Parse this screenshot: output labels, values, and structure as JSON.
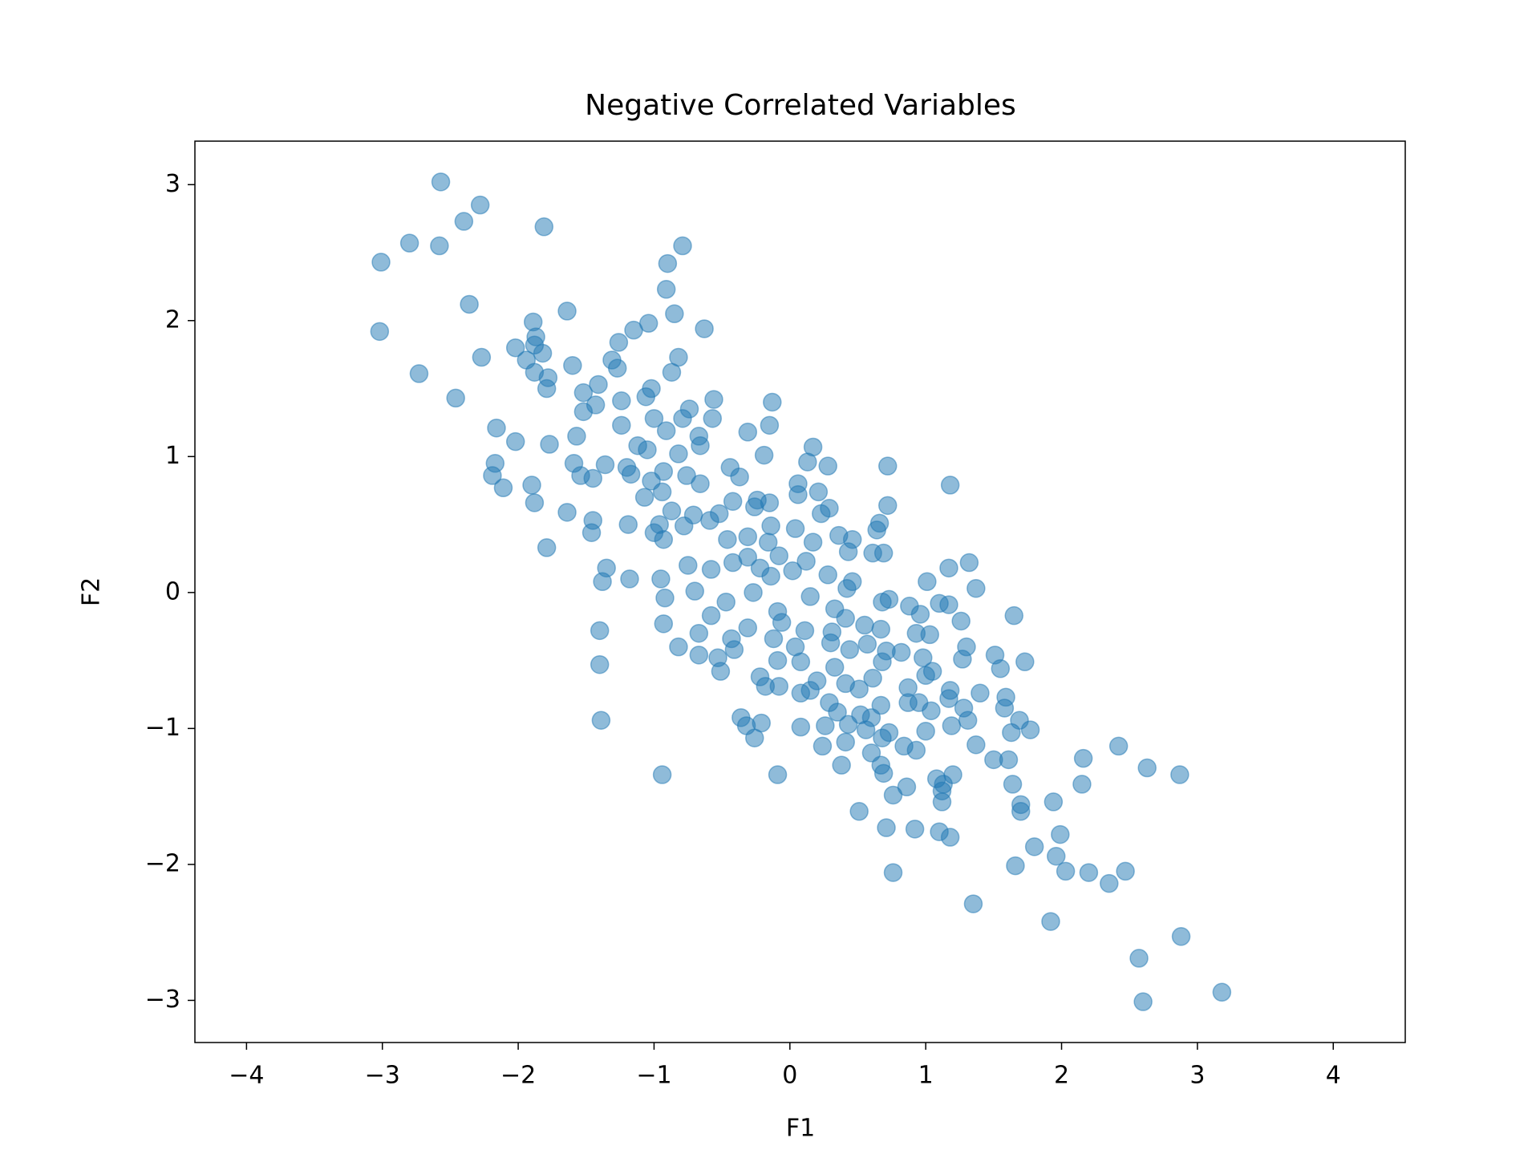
{
  "chart_data": {
    "type": "scatter",
    "title": "Negative Correlated Variables",
    "x_label": "F1",
    "y_label": "F2",
    "color": "#1f77b4",
    "xlim": [
      -4.38,
      4.53
    ],
    "ylim": [
      -3.31,
      3.32
    ],
    "xticks": [
      {
        "value": -4,
        "label": "−4"
      },
      {
        "value": -3,
        "label": "−3"
      },
      {
        "value": -2,
        "label": "−2"
      },
      {
        "value": -1,
        "label": "−1"
      },
      0,
      1,
      2,
      3,
      4
    ],
    "yticks": [
      {
        "value": -3,
        "label": "−3"
      },
      {
        "value": -2,
        "label": "−2"
      },
      {
        "value": -1,
        "label": "−1"
      },
      0,
      1,
      2,
      3
    ],
    "x": [
      -2.57,
      -2.28,
      -2.4,
      -1.81,
      -2.8,
      -2.58,
      -3.01,
      -0.79,
      -0.9,
      -0.91,
      -2.36,
      -1.64,
      -0.85,
      -3.02,
      -1.89,
      -1.04,
      -1.15,
      -0.63,
      -1.87,
      -1.88,
      -1.26,
      -2.02,
      -1.82,
      -2.27,
      -1.94,
      -0.82,
      -1.31,
      -1.6,
      -2.73,
      -1.88,
      -1.27,
      -0.87,
      -1.78,
      -1.79,
      -1.41,
      -1.52,
      -1.02,
      -1.06,
      -2.46,
      -0.56,
      -0.13,
      -1.24,
      -1.43,
      -1.52,
      -0.74,
      -1.0,
      -0.79,
      -0.57,
      -0.91,
      -0.31,
      -2.16,
      -1.24,
      -0.15,
      -0.67,
      -2.02,
      -1.77,
      -1.57,
      0.17,
      -0.66,
      -0.19,
      -1.12,
      -1.05,
      -0.82,
      -2.17,
      0.13,
      -1.59,
      -0.44,
      0.28,
      0.72,
      -1.36,
      -1.2,
      -1.17,
      -0.93,
      -2.19,
      -1.54,
      -1.45,
      -0.37,
      -0.76,
      -1.02,
      -2.11,
      -1.9,
      0.06,
      1.18,
      -0.66,
      -0.94,
      0.06,
      0.21,
      -1.07,
      -0.42,
      -0.24,
      -1.88,
      0.72,
      -0.15,
      -0.26,
      0.29,
      -1.64,
      -0.87,
      0.23,
      -0.52,
      -0.71,
      -1.45,
      -1.19,
      -0.96,
      -0.59,
      -0.78,
      -0.14,
      0.04,
      0.66,
      0.64,
      -1.46,
      -1.0,
      -0.93,
      0.46,
      -0.46,
      -0.31,
      0.36,
      0.17,
      -0.16,
      -1.79,
      0.43,
      0.61,
      0.69,
      -0.31,
      -0.08,
      0.12,
      1.32,
      -0.42,
      -0.22,
      -0.75,
      1.17,
      -1.35,
      -0.58,
      0.02,
      0.28,
      -0.14,
      -1.38,
      -1.18,
      -0.95,
      0.46,
      1.01,
      0.42,
      1.37,
      -0.7,
      -0.27,
      0.15,
      0.73,
      -0.92,
      0.68,
      -0.47,
      0.88,
      1.1,
      0.33,
      -0.09,
      0.96,
      1.17,
      1.65,
      0.41,
      -0.58,
      -0.93,
      1.26,
      -0.06,
      0.55,
      -0.31,
      0.67,
      0.31,
      -1.4,
      0.11,
      -0.67,
      0.93,
      1.03,
      -0.43,
      -0.12,
      0.3,
      0.57,
      -0.82,
      1.3,
      0.04,
      -0.41,
      0.44,
      0.71,
      0.82,
      -0.67,
      -0.53,
      0.98,
      1.27,
      1.73,
      0.68,
      -0.09,
      0.08,
      -1.4,
      0.33,
      1.51,
      1.55,
      -0.51,
      1.05,
      -0.22,
      0.61,
      0.2,
      0.41,
      1.0,
      -0.08,
      -0.18,
      0.87,
      0.15,
      0.51,
      1.18,
      1.4,
      1.59,
      0.08,
      0.95,
      1.17,
      1.28,
      0.29,
      1.58,
      0.67,
      0.87,
      0.35,
      0.52,
      1.04,
      0.6,
      1.69,
      -0.36,
      -0.32,
      -0.21,
      0.26,
      0.08,
      0.43,
      1.19,
      1.31,
      0.56,
      0.73,
      1.0,
      1.63,
      1.77,
      -1.39,
      0.68,
      -0.26,
      0.41,
      0.24,
      1.37,
      0.84,
      0.93,
      0.6,
      2.42,
      1.5,
      1.61,
      2.16,
      0.38,
      0.67,
      2.63,
      -0.09,
      -0.94,
      0.69,
      1.2,
      1.08,
      2.87,
      1.13,
      1.64,
      2.15,
      0.86,
      1.12,
      0.76,
      1.94,
      1.12,
      1.7,
      0.51,
      1.7,
      0.71,
      0.92,
      1.99,
      1.1,
      1.18,
      1.8,
      1.96,
      1.66,
      2.03,
      2.2,
      0.76,
      2.47,
      2.35,
      1.35,
      1.92,
      2.88,
      2.57,
      3.18,
      2.6
    ],
    "y": [
      3.02,
      2.85,
      2.73,
      2.69,
      2.57,
      2.55,
      2.43,
      2.55,
      2.42,
      2.23,
      2.12,
      2.07,
      2.05,
      1.92,
      1.99,
      1.98,
      1.93,
      1.94,
      1.88,
      1.82,
      1.84,
      1.8,
      1.76,
      1.73,
      1.71,
      1.73,
      1.71,
      1.67,
      1.61,
      1.62,
      1.65,
      1.62,
      1.58,
      1.5,
      1.53,
      1.47,
      1.5,
      1.44,
      1.43,
      1.42,
      1.4,
      1.41,
      1.38,
      1.33,
      1.35,
      1.28,
      1.28,
      1.28,
      1.19,
      1.18,
      1.21,
      1.23,
      1.23,
      1.15,
      1.11,
      1.09,
      1.15,
      1.07,
      1.08,
      1.01,
      1.08,
      1.05,
      1.02,
      0.95,
      0.96,
      0.95,
      0.92,
      0.93,
      0.93,
      0.94,
      0.92,
      0.87,
      0.89,
      0.86,
      0.86,
      0.84,
      0.85,
      0.86,
      0.82,
      0.77,
      0.79,
      0.8,
      0.79,
      0.8,
      0.74,
      0.72,
      0.74,
      0.7,
      0.67,
      0.68,
      0.66,
      0.64,
      0.66,
      0.63,
      0.62,
      0.59,
      0.6,
      0.58,
      0.58,
      0.57,
      0.53,
      0.5,
      0.5,
      0.53,
      0.49,
      0.49,
      0.47,
      0.51,
      0.46,
      0.44,
      0.44,
      0.39,
      0.39,
      0.39,
      0.41,
      0.42,
      0.37,
      0.37,
      0.33,
      0.3,
      0.29,
      0.29,
      0.26,
      0.27,
      0.23,
      0.22,
      0.22,
      0.18,
      0.2,
      0.18,
      0.18,
      0.17,
      0.16,
      0.13,
      0.12,
      0.08,
      0.1,
      0.1,
      0.08,
      0.08,
      0.03,
      0.03,
      0.01,
      0.0,
      -0.03,
      -0.05,
      -0.04,
      -0.07,
      -0.07,
      -0.1,
      -0.08,
      -0.12,
      -0.14,
      -0.16,
      -0.09,
      -0.17,
      -0.19,
      -0.17,
      -0.23,
      -0.21,
      -0.22,
      -0.24,
      -0.26,
      -0.27,
      -0.29,
      -0.28,
      -0.28,
      -0.3,
      -0.3,
      -0.31,
      -0.34,
      -0.34,
      -0.37,
      -0.38,
      -0.4,
      -0.4,
      -0.4,
      -0.42,
      -0.42,
      -0.43,
      -0.44,
      -0.46,
      -0.48,
      -0.48,
      -0.49,
      -0.51,
      -0.51,
      -0.5,
      -0.51,
      -0.53,
      -0.55,
      -0.46,
      -0.56,
      -0.58,
      -0.58,
      -0.62,
      -0.63,
      -0.65,
      -0.67,
      -0.61,
      -0.69,
      -0.69,
      -0.7,
      -0.72,
      -0.71,
      -0.72,
      -0.74,
      -0.77,
      -0.74,
      -0.81,
      -0.78,
      -0.85,
      -0.81,
      -0.85,
      -0.83,
      -0.81,
      -0.88,
      -0.9,
      -0.87,
      -0.92,
      -0.94,
      -0.92,
      -0.98,
      -0.96,
      -0.98,
      -0.99,
      -0.97,
      -0.98,
      -0.94,
      -1.01,
      -1.03,
      -1.02,
      -1.03,
      -1.01,
      -0.94,
      -1.07,
      -1.07,
      -1.1,
      -1.13,
      -1.12,
      -1.13,
      -1.16,
      -1.18,
      -1.13,
      -1.23,
      -1.23,
      -1.22,
      -1.27,
      -1.27,
      -1.29,
      -1.34,
      -1.34,
      -1.33,
      -1.34,
      -1.37,
      -1.34,
      -1.41,
      -1.41,
      -1.41,
      -1.43,
      -1.46,
      -1.49,
      -1.54,
      -1.54,
      -1.56,
      -1.61,
      -1.61,
      -1.73,
      -1.74,
      -1.78,
      -1.76,
      -1.8,
      -1.87,
      -1.94,
      -2.01,
      -2.05,
      -2.06,
      -2.06,
      -2.05,
      -2.14,
      -2.29,
      -2.42,
      -2.53,
      -2.69,
      -2.94,
      -3.01
    ]
  }
}
